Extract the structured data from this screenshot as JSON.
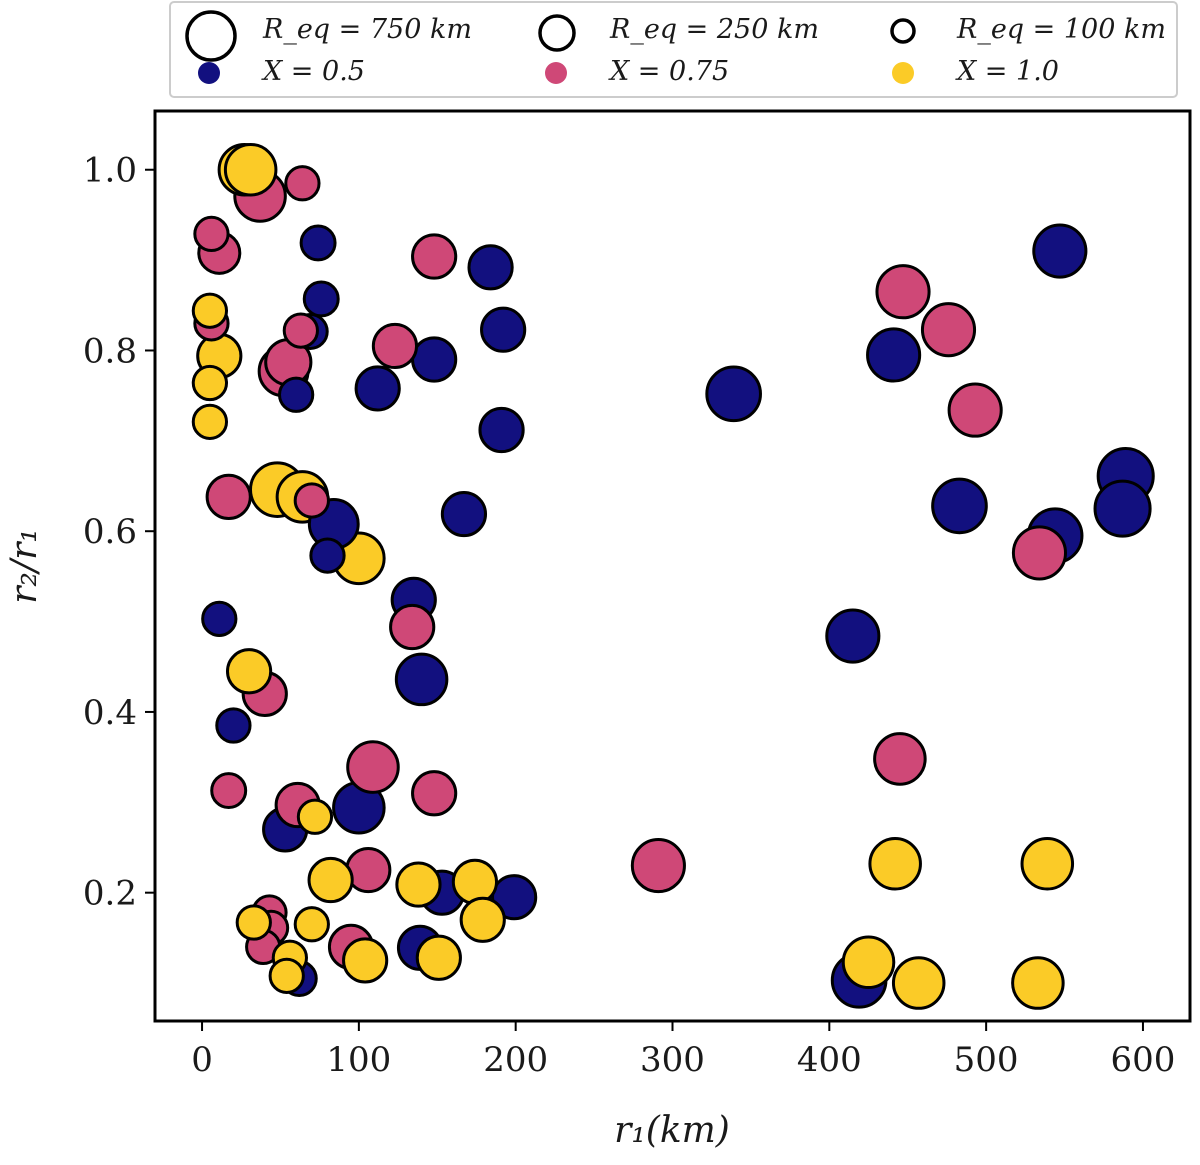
{
  "chart_data": {
    "type": "scatter",
    "xlabel": "r₁(km)",
    "ylabel": "r₂/r₁",
    "xlim": [
      -30,
      630
    ],
    "ylim": [
      0.058,
      1.065
    ],
    "xticks": [
      0,
      100,
      200,
      300,
      400,
      500,
      600
    ],
    "yticks": [
      0.2,
      0.4,
      0.6,
      0.8,
      1.0
    ],
    "xtick_labels": [
      "0",
      "100",
      "200",
      "300",
      "400",
      "500",
      "600"
    ],
    "ytick_labels": [
      "0.2",
      "0.4",
      "0.6",
      "0.8",
      "1.0"
    ],
    "colors": {
      "X_0.5": "#12107f",
      "X_0.75": "#cf4877",
      "X_1.0": "#fbcb27",
      "edge": "#000000"
    },
    "legend": {
      "location": "top",
      "size_entries": [
        {
          "label": "R_eq = 750 km",
          "req_km": 750
        },
        {
          "label": "R_eq = 250 km",
          "req_km": 250
        },
        {
          "label": "R_eq = 100 km",
          "req_km": 100
        }
      ],
      "color_entries": [
        {
          "label": "X = 0.5",
          "x": 0.5
        },
        {
          "label": "X = 0.75",
          "x": 0.75
        },
        {
          "label": "X = 1.0",
          "x": 1.0
        }
      ]
    },
    "series": [
      {
        "name": "X = 0.5",
        "color": "#12107f",
        "points": [
          {
            "r1": 547,
            "r2r1": 0.91,
            "req": 550
          },
          {
            "r1": 441,
            "r2r1": 0.795,
            "req": 550
          },
          {
            "r1": 339,
            "r2r1": 0.752,
            "req": 600
          },
          {
            "r1": 589,
            "r2r1": 0.661,
            "req": 650
          },
          {
            "r1": 587,
            "r2r1": 0.625,
            "req": 650
          },
          {
            "r1": 483,
            "r2r1": 0.628,
            "req": 600
          },
          {
            "r1": 544,
            "r2r1": 0.595,
            "req": 600
          },
          {
            "r1": 415,
            "r2r1": 0.484,
            "req": 550
          },
          {
            "r1": 419,
            "r2r1": 0.103,
            "req": 600
          },
          {
            "r1": 184,
            "r2r1": 0.892,
            "req": 300
          },
          {
            "r1": 192,
            "r2r1": 0.823,
            "req": 300
          },
          {
            "r1": 148,
            "r2r1": 0.79,
            "req": 300
          },
          {
            "r1": 112,
            "r2r1": 0.758,
            "req": 300
          },
          {
            "r1": 191,
            "r2r1": 0.712,
            "req": 300
          },
          {
            "r1": 167,
            "r2r1": 0.619,
            "req": 300
          },
          {
            "r1": 84,
            "r2r1": 0.608,
            "req": 450
          },
          {
            "r1": 135,
            "r2r1": 0.524,
            "req": 300
          },
          {
            "r1": 140,
            "r2r1": 0.436,
            "req": 500
          },
          {
            "r1": 100,
            "r2r1": 0.294,
            "req": 500
          },
          {
            "r1": 53,
            "r2r1": 0.27,
            "req": 300
          },
          {
            "r1": 153,
            "r2r1": 0.2,
            "req": 300
          },
          {
            "r1": 199,
            "r2r1": 0.195,
            "req": 300
          },
          {
            "r1": 139,
            "r2r1": 0.139,
            "req": 300
          },
          {
            "r1": 74,
            "r2r1": 0.919,
            "req": 120
          },
          {
            "r1": 76,
            "r2r1": 0.857,
            "req": 120
          },
          {
            "r1": 69,
            "r2r1": 0.821,
            "req": 120
          },
          {
            "r1": 60,
            "r2r1": 0.751,
            "req": 110
          },
          {
            "r1": 80,
            "r2r1": 0.573,
            "req": 110
          },
          {
            "r1": 11,
            "r2r1": 0.503,
            "req": 110
          },
          {
            "r1": 20,
            "r2r1": 0.385,
            "req": 110
          },
          {
            "r1": 62,
            "r2r1": 0.105,
            "req": 120
          }
        ]
      },
      {
        "name": "X = 0.75",
        "color": "#cf4877",
        "points": [
          {
            "r1": 37,
            "r2r1": 0.971,
            "req": 500
          },
          {
            "r1": 64,
            "r2r1": 0.985,
            "req": 110
          },
          {
            "r1": 6,
            "r2r1": 0.929,
            "req": 110
          },
          {
            "r1": 11,
            "r2r1": 0.908,
            "req": 250
          },
          {
            "r1": 148,
            "r2r1": 0.904,
            "req": 300
          },
          {
            "r1": 6,
            "r2r1": 0.83,
            "req": 110
          },
          {
            "r1": 63,
            "r2r1": 0.822,
            "req": 110
          },
          {
            "r1": 123,
            "r2r1": 0.805,
            "req": 300
          },
          {
            "r1": 55,
            "r2r1": 0.787,
            "req": 350
          },
          {
            "r1": 52,
            "r2r1": 0.777,
            "req": 450
          },
          {
            "r1": 17,
            "r2r1": 0.638,
            "req": 300
          },
          {
            "r1": 70,
            "r2r1": 0.634,
            "req": 110
          },
          {
            "r1": 134,
            "r2r1": 0.494,
            "req": 300
          },
          {
            "r1": 40,
            "r2r1": 0.42,
            "req": 300
          },
          {
            "r1": 109,
            "r2r1": 0.339,
            "req": 500
          },
          {
            "r1": 17,
            "r2r1": 0.313,
            "req": 120
          },
          {
            "r1": 148,
            "r2r1": 0.31,
            "req": 300
          },
          {
            "r1": 61,
            "r2r1": 0.297,
            "req": 300
          },
          {
            "r1": 106,
            "r2r1": 0.225,
            "req": 300
          },
          {
            "r1": 43,
            "r2r1": 0.178,
            "req": 110
          },
          {
            "r1": 44,
            "r2r1": 0.161,
            "req": 110
          },
          {
            "r1": 39,
            "r2r1": 0.14,
            "req": 110
          },
          {
            "r1": 95,
            "r2r1": 0.14,
            "req": 300
          },
          {
            "r1": 447,
            "r2r1": 0.865,
            "req": 550
          },
          {
            "r1": 476,
            "r2r1": 0.823,
            "req": 550
          },
          {
            "r1": 493,
            "r2r1": 0.734,
            "req": 550
          },
          {
            "r1": 534,
            "r2r1": 0.576,
            "req": 550
          },
          {
            "r1": 445,
            "r2r1": 0.348,
            "req": 500
          },
          {
            "r1": 291,
            "r2r1": 0.23,
            "req": 550
          }
        ]
      },
      {
        "name": "X = 1.0",
        "color": "#fbcb27",
        "points": [
          {
            "r1": 27,
            "r2r1": 1.0,
            "req": 500
          },
          {
            "r1": 31,
            "r2r1": 1.0,
            "req": 500
          },
          {
            "r1": 5,
            "r2r1": 0.844,
            "req": 110
          },
          {
            "r1": 11,
            "r2r1": 0.794,
            "req": 300
          },
          {
            "r1": 5,
            "r2r1": 0.764,
            "req": 110
          },
          {
            "r1": 5,
            "r2r1": 0.721,
            "req": 110
          },
          {
            "r1": 48,
            "r2r1": 0.646,
            "req": 600
          },
          {
            "r1": 64,
            "r2r1": 0.638,
            "req": 500
          },
          {
            "r1": 100,
            "r2r1": 0.57,
            "req": 500
          },
          {
            "r1": 30,
            "r2r1": 0.445,
            "req": 300
          },
          {
            "r1": 72,
            "r2r1": 0.284,
            "req": 110
          },
          {
            "r1": 82,
            "r2r1": 0.214,
            "req": 300
          },
          {
            "r1": 138,
            "r2r1": 0.209,
            "req": 300
          },
          {
            "r1": 174,
            "r2r1": 0.212,
            "req": 300
          },
          {
            "r1": 179,
            "r2r1": 0.17,
            "req": 300
          },
          {
            "r1": 33,
            "r2r1": 0.167,
            "req": 110
          },
          {
            "r1": 70,
            "r2r1": 0.165,
            "req": 110
          },
          {
            "r1": 56,
            "r2r1": 0.128,
            "req": 110
          },
          {
            "r1": 104,
            "r2r1": 0.125,
            "req": 300
          },
          {
            "r1": 151,
            "r2r1": 0.128,
            "req": 300
          },
          {
            "r1": 54,
            "r2r1": 0.108,
            "req": 110
          },
          {
            "r1": 442,
            "r2r1": 0.232,
            "req": 500
          },
          {
            "r1": 539,
            "r2r1": 0.232,
            "req": 500
          },
          {
            "r1": 425,
            "r2r1": 0.123,
            "req": 500
          },
          {
            "r1": 457,
            "r2r1": 0.1,
            "req": 500
          },
          {
            "r1": 533,
            "r2r1": 0.1,
            "req": 500
          }
        ]
      }
    ]
  }
}
